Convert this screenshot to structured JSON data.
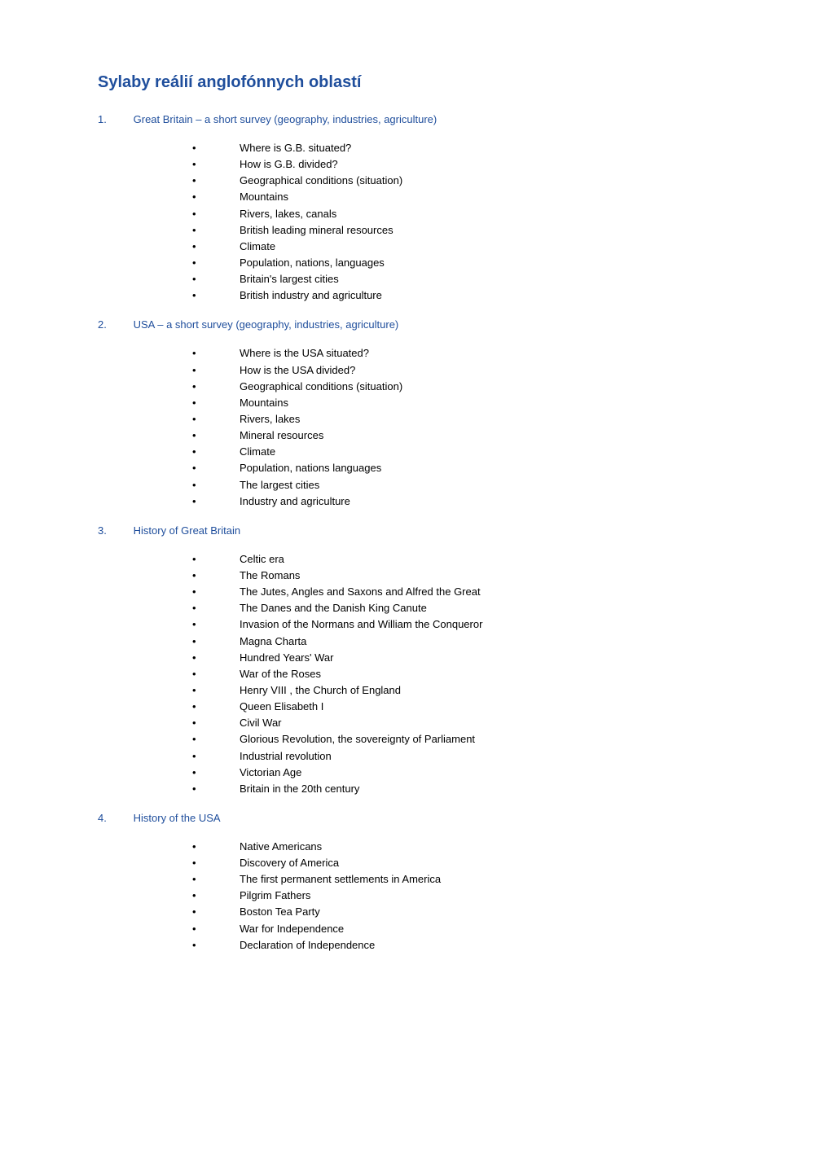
{
  "title_color": "#1f4e9c",
  "heading_color": "#1f4e9c",
  "body_text_color": "#000000",
  "bullet_color": "#000000",
  "background_color": "#ffffff",
  "font_family": "Verdana, Geneva, sans-serif",
  "title_fontsize": 20,
  "heading_fontsize": 13,
  "body_fontsize": 13,
  "page_title": "Sylaby reálií anglofónnych oblastí",
  "sections": [
    {
      "number": "1.",
      "heading": "Great Britain – a short survey (geography, industries, agriculture)",
      "items": [
        "Where is G.B. situated?",
        "How is G.B. divided?",
        "Geographical  conditions (situation)",
        "Mountains",
        "Rivers, lakes, canals",
        "British leading mineral resources",
        "Climate",
        "Population, nations, languages",
        "Britain's largest cities",
        "British industry and agriculture"
      ]
    },
    {
      "number": "2.",
      "heading": "USA – a short survey (geography, industries, agriculture)",
      "items": [
        "Where is the USA situated?",
        "How is the USA divided?",
        "Geographical conditions (situation)",
        "Mountains",
        "Rivers, lakes",
        "Mineral resources",
        "Climate",
        "Population, nations languages",
        "The largest cities",
        "Industry and agriculture"
      ]
    },
    {
      "number": "3.",
      "heading": "History of  Great Britain",
      "items": [
        "Celtic  era",
        "The Romans",
        "The Jutes, Angles and Saxons and Alfred the Great",
        "The Danes and the Danish King Canute",
        "Invasion of the Normans and William the Conqueror",
        "Magna Charta",
        "Hundred Years' War",
        "War of the Roses",
        "Henry VIII , the Church of England",
        "Queen Elisabeth I",
        "Civil War",
        "Glorious Revolution, the sovereignty of Parliament",
        "Industrial revolution",
        "Victorian Age",
        "Britain in the 20th century"
      ]
    },
    {
      "number": "4.",
      "heading": "History of the USA",
      "items": [
        "Native Americans",
        "Discovery of America",
        "The first permanent settlements in America",
        "Pilgrim Fathers",
        "Boston Tea Party",
        "War for Independence",
        "Declaration of Independence"
      ]
    }
  ]
}
